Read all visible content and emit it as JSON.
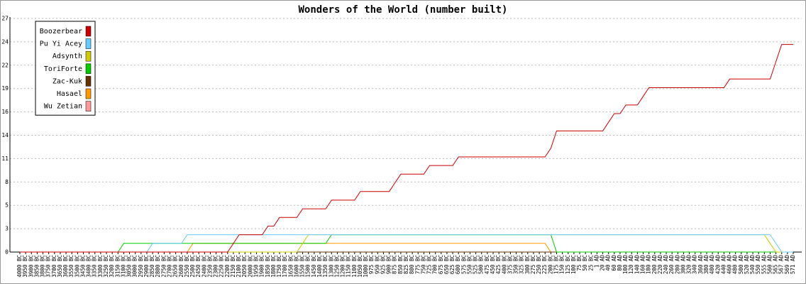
{
  "chart_data": {
    "type": "line",
    "title": "Wonders of the World (number built)",
    "categories": [
      "4000 BC",
      "3950 BC",
      "3900 BC",
      "3850 BC",
      "3800 BC",
      "3750 BC",
      "3700 BC",
      "3650 BC",
      "3600 BC",
      "3550 BC",
      "3500 BC",
      "3450 BC",
      "3400 BC",
      "3350 BC",
      "3300 BC",
      "3250 BC",
      "3200 BC",
      "3150 BC",
      "3100 BC",
      "3050 BC",
      "3000 BC",
      "2950 BC",
      "2900 BC",
      "2850 BC",
      "2800 BC",
      "2750 BC",
      "2700 BC",
      "2650 BC",
      "2600 BC",
      "2550 BC",
      "2500 BC",
      "2450 BC",
      "2400 BC",
      "2350 BC",
      "2300 BC",
      "2250 BC",
      "2200 BC",
      "2150 BC",
      "2100 BC",
      "2050 BC",
      "2000 BC",
      "1950 BC",
      "1900 BC",
      "1850 BC",
      "1800 BC",
      "1750 BC",
      "1700 BC",
      "1650 BC",
      "1600 BC",
      "1550 BC",
      "1500 BC",
      "1450 BC",
      "1400 BC",
      "1350 BC",
      "1300 BC",
      "1250 BC",
      "1200 BC",
      "1150 BC",
      "1100 BC",
      "1050 BC",
      "1000 BC",
      "975 BC",
      "950 BC",
      "925 BC",
      "900 BC",
      "875 BC",
      "850 BC",
      "825 BC",
      "800 BC",
      "775 BC",
      "750 BC",
      "725 BC",
      "700 BC",
      "675 BC",
      "650 BC",
      "625 BC",
      "600 BC",
      "575 BC",
      "550 BC",
      "525 BC",
      "500 BC",
      "475 BC",
      "450 BC",
      "425 BC",
      "400 BC",
      "375 BC",
      "350 BC",
      "325 BC",
      "300 BC",
      "275 BC",
      "250 BC",
      "225 BC",
      "200 BC",
      "175 BC",
      "150 BC",
      "125 BC",
      "100 BC",
      "75 BC",
      "50 BC",
      "25 BC",
      "1 AD",
      "20 AD",
      "40 AD",
      "60 AD",
      "80 AD",
      "100 AD",
      "120 AD",
      "140 AD",
      "160 AD",
      "180 AD",
      "200 AD",
      "220 AD",
      "240 AD",
      "260 AD",
      "280 AD",
      "300 AD",
      "320 AD",
      "340 AD",
      "360 AD",
      "380 AD",
      "400 AD",
      "420 AD",
      "440 AD",
      "460 AD",
      "480 AD",
      "500 AD",
      "520 AD",
      "540 AD",
      "550 AD",
      "555 AD",
      "560 AD",
      "565 AD",
      "567 AD",
      "569 AD",
      "571 AD"
    ],
    "series": [
      {
        "name": "Boozerbear",
        "color": "#cc0000",
        "values": [
          0,
          0,
          0,
          0,
          0,
          0,
          0,
          0,
          0,
          0,
          0,
          0,
          0,
          0,
          0,
          0,
          0,
          0,
          0,
          0,
          0,
          0,
          0,
          0,
          0,
          0,
          0,
          0,
          0,
          0,
          0,
          0,
          0,
          0,
          0,
          0,
          0,
          1,
          2,
          2,
          2,
          2,
          2,
          3,
          3,
          4,
          4,
          4,
          4,
          5,
          5,
          5,
          5,
          5,
          6,
          6,
          6,
          6,
          6,
          7,
          7,
          7,
          7,
          7,
          7,
          8,
          9,
          9,
          9,
          9,
          9,
          10,
          10,
          10,
          10,
          10,
          11,
          11,
          11,
          11,
          11,
          11,
          11,
          11,
          11,
          11,
          11,
          11,
          11,
          11,
          11,
          11,
          12,
          14,
          14,
          14,
          14,
          14,
          14,
          14,
          14,
          14,
          15,
          16,
          16,
          17,
          17,
          17,
          18,
          19,
          19,
          19,
          19,
          19,
          19,
          19,
          19,
          19,
          19,
          19,
          19,
          19,
          19,
          20,
          20,
          20,
          20,
          20,
          20,
          20,
          20,
          22,
          24,
          24,
          24
        ]
      },
      {
        "name": "Pu Yi Acey",
        "color": "#66ccff",
        "values": [
          0,
          0,
          0,
          0,
          0,
          0,
          0,
          0,
          0,
          0,
          0,
          0,
          0,
          0,
          0,
          0,
          0,
          0,
          0,
          0,
          0,
          0,
          0,
          1,
          1,
          1,
          1,
          1,
          1,
          2,
          2,
          2,
          2,
          2,
          2,
          2,
          2,
          2,
          2,
          2,
          2,
          2,
          2,
          2,
          2,
          2,
          2,
          2,
          2,
          2,
          2,
          2,
          2,
          2,
          2,
          2,
          2,
          2,
          2,
          2,
          2,
          2,
          2,
          2,
          2,
          2,
          2,
          2,
          2,
          2,
          2,
          2,
          2,
          2,
          2,
          2,
          2,
          2,
          2,
          2,
          2,
          2,
          2,
          2,
          2,
          2,
          2,
          2,
          2,
          2,
          2,
          2,
          2,
          2,
          2,
          2,
          2,
          2,
          2,
          2,
          2,
          2,
          2,
          2,
          2,
          2,
          2,
          2,
          2,
          2,
          2,
          2,
          2,
          2,
          2,
          2,
          2,
          2,
          2,
          2,
          2,
          2,
          2,
          2,
          2,
          2,
          2,
          2,
          2,
          2,
          2,
          1,
          0,
          0,
          0
        ]
      },
      {
        "name": "Adsynth",
        "color": "#cccc00",
        "values": [
          0,
          0,
          0,
          0,
          0,
          0,
          0,
          0,
          0,
          0,
          0,
          0,
          0,
          0,
          0,
          0,
          0,
          0,
          0,
          0,
          0,
          0,
          0,
          0,
          0,
          0,
          0,
          0,
          0,
          0,
          0,
          0,
          0,
          0,
          0,
          0,
          0,
          0,
          0,
          0,
          0,
          0,
          0,
          0,
          0,
          0,
          0,
          0,
          0,
          1,
          2,
          2,
          2,
          2,
          2,
          2,
          2,
          2,
          2,
          2,
          2,
          2,
          2,
          2,
          2,
          2,
          2,
          2,
          2,
          2,
          2,
          2,
          2,
          2,
          2,
          2,
          2,
          2,
          2,
          2,
          2,
          2,
          2,
          2,
          2,
          2,
          2,
          2,
          2,
          2,
          2,
          2,
          2,
          2,
          2,
          2,
          2,
          2,
          2,
          2,
          2,
          2,
          2,
          2,
          2,
          2,
          2,
          2,
          2,
          2,
          2,
          2,
          2,
          2,
          2,
          2,
          2,
          2,
          2,
          2,
          2,
          2,
          2,
          2,
          2,
          2,
          2,
          2,
          2,
          2,
          1,
          0,
          0,
          0,
          0
        ]
      },
      {
        "name": "ToriForte",
        "color": "#00cc00",
        "values": [
          0,
          0,
          0,
          0,
          0,
          0,
          0,
          0,
          0,
          0,
          0,
          0,
          0,
          0,
          0,
          0,
          0,
          0,
          1,
          1,
          1,
          1,
          1,
          1,
          1,
          1,
          1,
          1,
          1,
          1,
          1,
          1,
          1,
          1,
          1,
          1,
          1,
          1,
          1,
          1,
          1,
          1,
          1,
          1,
          1,
          1,
          1,
          1,
          1,
          1,
          1,
          1,
          1,
          1,
          2,
          2,
          2,
          2,
          2,
          2,
          2,
          2,
          2,
          2,
          2,
          2,
          2,
          2,
          2,
          2,
          2,
          2,
          2,
          2,
          2,
          2,
          2,
          2,
          2,
          2,
          2,
          2,
          2,
          2,
          2,
          2,
          2,
          2,
          2,
          2,
          2,
          2,
          2,
          0,
          0,
          0,
          0,
          0,
          0,
          0,
          0,
          0,
          0,
          0,
          0,
          0,
          0,
          0,
          0,
          0,
          0,
          0,
          0,
          0,
          0,
          0,
          0,
          0,
          0,
          0,
          0,
          0,
          0,
          0,
          0,
          0,
          0,
          0,
          0,
          0,
          0,
          0,
          0,
          0,
          0
        ]
      },
      {
        "name": "Zac-Kuk",
        "color": "#663300",
        "values": [
          0,
          0,
          0,
          0,
          0,
          0,
          0,
          0,
          0,
          0,
          0,
          0,
          0,
          0,
          0,
          0,
          0,
          0,
          0,
          0,
          0,
          0,
          0,
          0,
          0,
          0,
          0,
          0,
          0,
          0,
          0,
          0,
          0,
          0,
          0,
          0,
          0,
          0,
          0,
          0,
          0,
          0,
          0,
          0,
          0,
          0,
          0,
          0,
          0,
          0,
          0,
          0,
          0,
          0,
          0,
          0,
          0,
          0,
          0,
          0,
          0,
          0,
          0,
          0,
          0,
          0,
          0,
          0,
          0,
          0,
          0,
          0,
          0,
          0,
          0,
          0,
          0,
          0,
          0,
          0,
          0,
          0,
          0,
          0,
          0,
          0,
          0,
          0,
          0,
          0,
          0,
          0,
          0,
          0,
          0,
          0,
          0,
          0,
          0,
          0,
          0,
          0,
          0,
          0,
          0,
          0,
          0,
          0,
          0,
          0,
          0,
          0,
          0,
          0,
          0,
          0,
          0,
          0,
          0,
          0,
          0,
          0,
          0,
          0,
          0,
          0,
          0,
          0,
          0,
          0,
          0,
          0,
          0,
          0,
          0
        ]
      },
      {
        "name": "Hasael",
        "color": "#ff9900",
        "values": [
          0,
          0,
          0,
          0,
          0,
          0,
          0,
          0,
          0,
          0,
          0,
          0,
          0,
          0,
          0,
          0,
          0,
          0,
          0,
          0,
          0,
          0,
          0,
          0,
          0,
          0,
          0,
          0,
          0,
          0,
          1,
          1,
          1,
          1,
          1,
          1,
          1,
          1,
          1,
          1,
          1,
          1,
          1,
          1,
          1,
          1,
          1,
          1,
          1,
          1,
          1,
          1,
          1,
          1,
          1,
          1,
          1,
          1,
          1,
          1,
          1,
          1,
          1,
          1,
          1,
          1,
          1,
          1,
          1,
          1,
          1,
          1,
          1,
          1,
          1,
          1,
          1,
          1,
          1,
          1,
          1,
          1,
          1,
          1,
          1,
          1,
          1,
          1,
          1,
          1,
          1,
          1,
          0,
          0,
          0,
          0,
          0,
          0,
          0,
          0,
          0,
          0,
          0,
          0,
          0,
          0,
          0,
          0,
          0,
          0,
          0,
          0,
          0,
          0,
          0,
          0,
          0,
          0,
          0,
          0,
          0,
          0,
          0,
          0,
          0,
          0,
          0,
          0,
          0,
          0,
          0,
          0,
          0,
          0,
          0
        ]
      },
      {
        "name": "Wu Zetian",
        "color": "#ff9999",
        "values": [
          0,
          0,
          0,
          0,
          0,
          0,
          0,
          0,
          0,
          0,
          0,
          0,
          0,
          0,
          0,
          0,
          0,
          0,
          0,
          0,
          0,
          0,
          0,
          0,
          0,
          0,
          0,
          0,
          0,
          0,
          0,
          0,
          0,
          0,
          0,
          0,
          0,
          0,
          0,
          0,
          0,
          0,
          0,
          0,
          0,
          0,
          0,
          0,
          0,
          0,
          0,
          0,
          0,
          0,
          0,
          0,
          0,
          0,
          0,
          0,
          0,
          0,
          0,
          0,
          0,
          0,
          0,
          0,
          0,
          0,
          0,
          0,
          0,
          0,
          0,
          0,
          0,
          0,
          0,
          0,
          0,
          0,
          0,
          0,
          0,
          0,
          0,
          0,
          0,
          0,
          0,
          0,
          0,
          0,
          0,
          0,
          0,
          0,
          0,
          0,
          0,
          0,
          0,
          0,
          0,
          0,
          0,
          0,
          0,
          0,
          0,
          0,
          0,
          0,
          0,
          0,
          0,
          0,
          0,
          0,
          0,
          0,
          0,
          0,
          0,
          0,
          0,
          0,
          0,
          0,
          0,
          0,
          0,
          0,
          0
        ]
      }
    ],
    "ylim": [
      0,
      27
    ],
    "yticks": [
      0,
      {
        "value": 2.7,
        "label": "3"
      },
      {
        "value": 5.4,
        "label": "5"
      },
      {
        "value": 8.1,
        "label": "8"
      },
      {
        "value": 10.8,
        "label": "11"
      },
      {
        "value": 13.5,
        "label": "14"
      },
      {
        "value": 16.2,
        "label": "16"
      },
      {
        "value": 18.9,
        "label": "19"
      },
      {
        "value": 21.6,
        "label": "22"
      },
      {
        "value": 24.3,
        "label": "24"
      },
      27
    ],
    "grid": true,
    "legend": "upper left"
  }
}
